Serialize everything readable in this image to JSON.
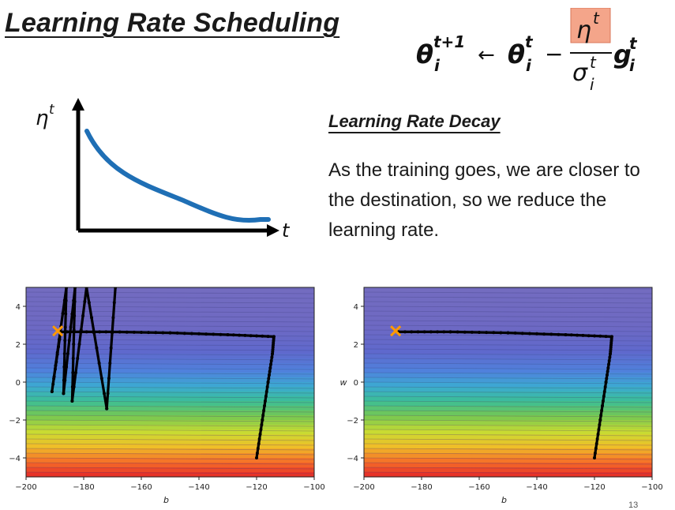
{
  "slide": {
    "title": "Learning Rate Scheduling",
    "subhead": "Learning Rate Decay",
    "description": "As the training goes, we are closer to the destination, so we reduce the learning rate.",
    "page_number": "13"
  },
  "formula": {
    "lhs_symbol": "θ",
    "lhs_sup": "t+1",
    "lhs_sub": "i",
    "arrow": "←",
    "rhs_symbol": "θ",
    "rhs_sup": "t",
    "rhs_sub": "i",
    "minus": "−",
    "eta": "η",
    "eta_sup": "t",
    "sigma": "σ",
    "sigma_sup": "t",
    "sigma_sub": "i",
    "g": "g",
    "g_sup": "t",
    "g_sub": "i",
    "highlight_color": "#f4a58a"
  },
  "decay_plot": {
    "y_label": "η",
    "y_label_sup": "t",
    "x_label": "t",
    "curve_color": "#1f6fb5"
  },
  "chart_data": [
    {
      "type": "line",
      "title": "",
      "xlabel": "b",
      "ylabel": "",
      "xlim": [
        -200,
        -100
      ],
      "ylim": [
        -5,
        5
      ],
      "xticks": [
        "−200",
        "−180",
        "−160",
        "−140",
        "−120",
        "−100"
      ],
      "yticks": [
        "4",
        "2",
        "0",
        "−2",
        "−4"
      ],
      "target": {
        "b": -189,
        "w": 2.7,
        "marker": "x",
        "color": "#ff9900"
      },
      "series": [
        {
          "name": "trajectory",
          "points": [
            [
              -120,
              -4
            ],
            [
              -118,
              -2
            ],
            [
              -116,
              0
            ],
            [
              -114.5,
              1.5
            ],
            [
              -114,
              2.4
            ],
            [
              -130,
              2.5
            ],
            [
              -150,
              2.6
            ],
            [
              -170,
              2.65
            ],
            [
              -188,
              2.65
            ],
            [
              -191,
              -0.5
            ],
            [
              -186,
              5
            ],
            [
              -187,
              -0.6
            ],
            [
              -183,
              5
            ],
            [
              -184,
              -1
            ],
            [
              -179,
              5
            ],
            [
              -172,
              -1.4
            ],
            [
              -169,
              5
            ]
          ]
        }
      ]
    },
    {
      "type": "line",
      "title": "",
      "xlabel": "b",
      "ylabel": "w",
      "xlim": [
        -200,
        -100
      ],
      "ylim": [
        -5,
        5
      ],
      "xticks": [
        "−200",
        "−180",
        "−160",
        "−140",
        "−120",
        "−100"
      ],
      "yticks": [
        "4",
        "2",
        "0",
        "−2",
        "−4"
      ],
      "target": {
        "b": -189,
        "w": 2.7,
        "marker": "x",
        "color": "#ff9900"
      },
      "series": [
        {
          "name": "trajectory",
          "points": [
            [
              -120,
              -4
            ],
            [
              -118,
              -2
            ],
            [
              -116,
              0
            ],
            [
              -114.5,
              1.5
            ],
            [
              -114,
              2.4
            ],
            [
              -130,
              2.5
            ],
            [
              -150,
              2.6
            ],
            [
              -170,
              2.65
            ],
            [
              -188,
              2.65
            ]
          ]
        }
      ]
    }
  ]
}
